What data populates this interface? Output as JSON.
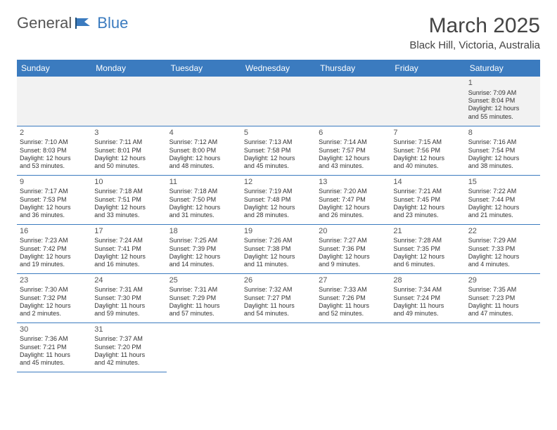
{
  "logo": {
    "part1": "General",
    "part2": "Blue"
  },
  "title": "March 2025",
  "location": "Black Hill, Victoria, Australia",
  "colors": {
    "accent": "#3b7bbf",
    "text": "#333333",
    "bg": "#ffffff",
    "altRow": "#f2f2f2"
  },
  "weekdays": [
    "Sunday",
    "Monday",
    "Tuesday",
    "Wednesday",
    "Thursday",
    "Friday",
    "Saturday"
  ],
  "weeks": [
    [
      null,
      null,
      null,
      null,
      null,
      null,
      {
        "n": "1",
        "sr": "Sunrise: 7:09 AM",
        "ss": "Sunset: 8:04 PM",
        "d1": "Daylight: 12 hours",
        "d2": "and 55 minutes."
      }
    ],
    [
      {
        "n": "2",
        "sr": "Sunrise: 7:10 AM",
        "ss": "Sunset: 8:03 PM",
        "d1": "Daylight: 12 hours",
        "d2": "and 53 minutes."
      },
      {
        "n": "3",
        "sr": "Sunrise: 7:11 AM",
        "ss": "Sunset: 8:01 PM",
        "d1": "Daylight: 12 hours",
        "d2": "and 50 minutes."
      },
      {
        "n": "4",
        "sr": "Sunrise: 7:12 AM",
        "ss": "Sunset: 8:00 PM",
        "d1": "Daylight: 12 hours",
        "d2": "and 48 minutes."
      },
      {
        "n": "5",
        "sr": "Sunrise: 7:13 AM",
        "ss": "Sunset: 7:58 PM",
        "d1": "Daylight: 12 hours",
        "d2": "and 45 minutes."
      },
      {
        "n": "6",
        "sr": "Sunrise: 7:14 AM",
        "ss": "Sunset: 7:57 PM",
        "d1": "Daylight: 12 hours",
        "d2": "and 43 minutes."
      },
      {
        "n": "7",
        "sr": "Sunrise: 7:15 AM",
        "ss": "Sunset: 7:56 PM",
        "d1": "Daylight: 12 hours",
        "d2": "and 40 minutes."
      },
      {
        "n": "8",
        "sr": "Sunrise: 7:16 AM",
        "ss": "Sunset: 7:54 PM",
        "d1": "Daylight: 12 hours",
        "d2": "and 38 minutes."
      }
    ],
    [
      {
        "n": "9",
        "sr": "Sunrise: 7:17 AM",
        "ss": "Sunset: 7:53 PM",
        "d1": "Daylight: 12 hours",
        "d2": "and 36 minutes."
      },
      {
        "n": "10",
        "sr": "Sunrise: 7:18 AM",
        "ss": "Sunset: 7:51 PM",
        "d1": "Daylight: 12 hours",
        "d2": "and 33 minutes."
      },
      {
        "n": "11",
        "sr": "Sunrise: 7:18 AM",
        "ss": "Sunset: 7:50 PM",
        "d1": "Daylight: 12 hours",
        "d2": "and 31 minutes."
      },
      {
        "n": "12",
        "sr": "Sunrise: 7:19 AM",
        "ss": "Sunset: 7:48 PM",
        "d1": "Daylight: 12 hours",
        "d2": "and 28 minutes."
      },
      {
        "n": "13",
        "sr": "Sunrise: 7:20 AM",
        "ss": "Sunset: 7:47 PM",
        "d1": "Daylight: 12 hours",
        "d2": "and 26 minutes."
      },
      {
        "n": "14",
        "sr": "Sunrise: 7:21 AM",
        "ss": "Sunset: 7:45 PM",
        "d1": "Daylight: 12 hours",
        "d2": "and 23 minutes."
      },
      {
        "n": "15",
        "sr": "Sunrise: 7:22 AM",
        "ss": "Sunset: 7:44 PM",
        "d1": "Daylight: 12 hours",
        "d2": "and 21 minutes."
      }
    ],
    [
      {
        "n": "16",
        "sr": "Sunrise: 7:23 AM",
        "ss": "Sunset: 7:42 PM",
        "d1": "Daylight: 12 hours",
        "d2": "and 19 minutes."
      },
      {
        "n": "17",
        "sr": "Sunrise: 7:24 AM",
        "ss": "Sunset: 7:41 PM",
        "d1": "Daylight: 12 hours",
        "d2": "and 16 minutes."
      },
      {
        "n": "18",
        "sr": "Sunrise: 7:25 AM",
        "ss": "Sunset: 7:39 PM",
        "d1": "Daylight: 12 hours",
        "d2": "and 14 minutes."
      },
      {
        "n": "19",
        "sr": "Sunrise: 7:26 AM",
        "ss": "Sunset: 7:38 PM",
        "d1": "Daylight: 12 hours",
        "d2": "and 11 minutes."
      },
      {
        "n": "20",
        "sr": "Sunrise: 7:27 AM",
        "ss": "Sunset: 7:36 PM",
        "d1": "Daylight: 12 hours",
        "d2": "and 9 minutes."
      },
      {
        "n": "21",
        "sr": "Sunrise: 7:28 AM",
        "ss": "Sunset: 7:35 PM",
        "d1": "Daylight: 12 hours",
        "d2": "and 6 minutes."
      },
      {
        "n": "22",
        "sr": "Sunrise: 7:29 AM",
        "ss": "Sunset: 7:33 PM",
        "d1": "Daylight: 12 hours",
        "d2": "and 4 minutes."
      }
    ],
    [
      {
        "n": "23",
        "sr": "Sunrise: 7:30 AM",
        "ss": "Sunset: 7:32 PM",
        "d1": "Daylight: 12 hours",
        "d2": "and 2 minutes."
      },
      {
        "n": "24",
        "sr": "Sunrise: 7:31 AM",
        "ss": "Sunset: 7:30 PM",
        "d1": "Daylight: 11 hours",
        "d2": "and 59 minutes."
      },
      {
        "n": "25",
        "sr": "Sunrise: 7:31 AM",
        "ss": "Sunset: 7:29 PM",
        "d1": "Daylight: 11 hours",
        "d2": "and 57 minutes."
      },
      {
        "n": "26",
        "sr": "Sunrise: 7:32 AM",
        "ss": "Sunset: 7:27 PM",
        "d1": "Daylight: 11 hours",
        "d2": "and 54 minutes."
      },
      {
        "n": "27",
        "sr": "Sunrise: 7:33 AM",
        "ss": "Sunset: 7:26 PM",
        "d1": "Daylight: 11 hours",
        "d2": "and 52 minutes."
      },
      {
        "n": "28",
        "sr": "Sunrise: 7:34 AM",
        "ss": "Sunset: 7:24 PM",
        "d1": "Daylight: 11 hours",
        "d2": "and 49 minutes."
      },
      {
        "n": "29",
        "sr": "Sunrise: 7:35 AM",
        "ss": "Sunset: 7:23 PM",
        "d1": "Daylight: 11 hours",
        "d2": "and 47 minutes."
      }
    ],
    [
      {
        "n": "30",
        "sr": "Sunrise: 7:36 AM",
        "ss": "Sunset: 7:21 PM",
        "d1": "Daylight: 11 hours",
        "d2": "and 45 minutes."
      },
      {
        "n": "31",
        "sr": "Sunrise: 7:37 AM",
        "ss": "Sunset: 7:20 PM",
        "d1": "Daylight: 11 hours",
        "d2": "and 42 minutes."
      },
      null,
      null,
      null,
      null,
      null
    ]
  ]
}
